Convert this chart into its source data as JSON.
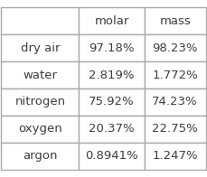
{
  "col_headers": [
    "",
    "molar",
    "mass"
  ],
  "rows": [
    [
      "dry air",
      "97.18%",
      "98.23%"
    ],
    [
      "water",
      "2.819%",
      "1.772%"
    ],
    [
      "nitrogen",
      "75.92%",
      "74.23%"
    ],
    [
      "oxygen",
      "20.37%",
      "22.75%"
    ],
    [
      "argon",
      "0.8941%",
      "1.247%"
    ]
  ],
  "background_color": "#ffffff",
  "text_color": "#3d3d3d",
  "header_color": "#ffffff",
  "grid_color": "#aaaaaa",
  "font_size": 9.5
}
